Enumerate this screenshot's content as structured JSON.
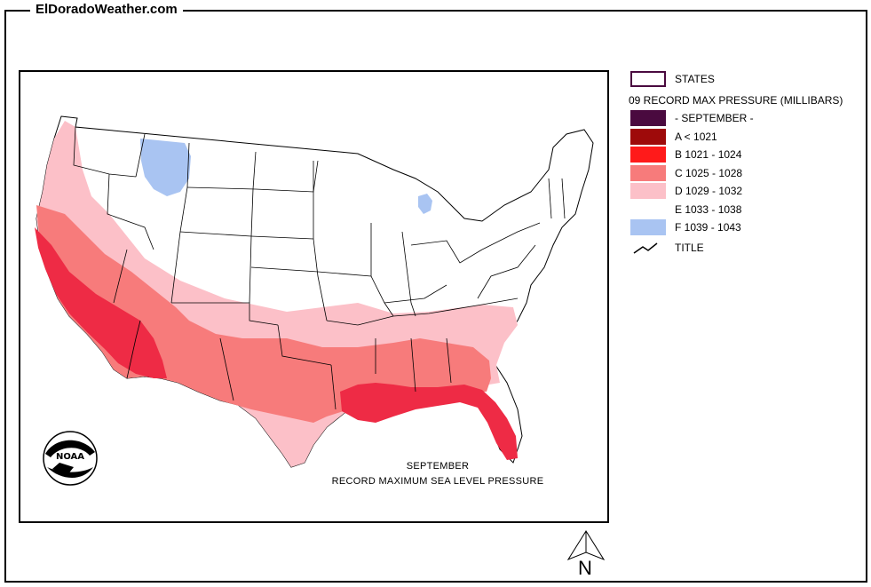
{
  "site": {
    "title": "ElDoradoWeather.com"
  },
  "map": {
    "caption_line1": "SEPTEMBER",
    "caption_line2": "RECORD  MAXIMUM  SEA LEVEL PRESSURE",
    "logo_text": "NOAA"
  },
  "legend": {
    "states_label": "STATES",
    "heading": "09 RECORD MAX PRESSURE (MILLIBARS)",
    "items": [
      {
        "label": "- SEPTEMBER -",
        "color": "#4a0a3f"
      },
      {
        "label": "A < 1021",
        "color": "#9e0a0a"
      },
      {
        "label": "B 1021 - 1024",
        "color": "#ff1a1a"
      },
      {
        "label": "C 1025 - 1028",
        "color": "#f77b7b"
      },
      {
        "label": "D 1029 - 1032",
        "color": "#fcc0c8"
      },
      {
        "label": "E 1033 - 1038",
        "color": "#ffffff"
      },
      {
        "label": "F 1039 - 1043",
        "color": "#a9c4f2"
      }
    ],
    "title_label": "TITLE"
  },
  "compass": {
    "label": "N"
  }
}
